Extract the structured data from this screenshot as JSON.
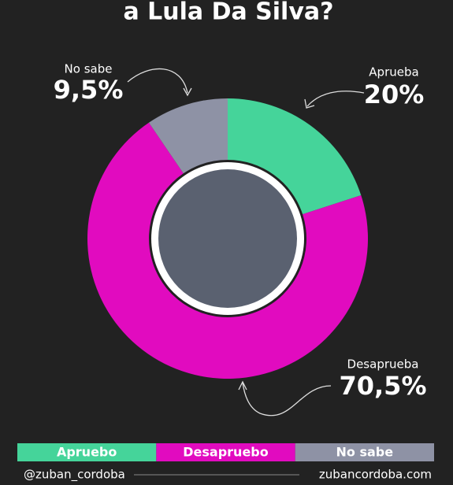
{
  "chart_data": {
    "type": "donut",
    "title": "a Lula Da Silva?",
    "categories": [
      "Aprueba",
      "Desaprueba",
      "No sabe"
    ],
    "values": [
      20,
      70.5,
      9.5
    ],
    "value_labels": [
      "20%",
      "70,5%",
      "9,5%"
    ],
    "colors": [
      "#45d49a",
      "#e10bbf",
      "#8e92a5"
    ],
    "legend_labels": [
      "Apruebo",
      "Desapruebo",
      "No sabe"
    ],
    "footer_left": "@zuban_cordoba",
    "footer_right": "zubancordoba.com"
  }
}
